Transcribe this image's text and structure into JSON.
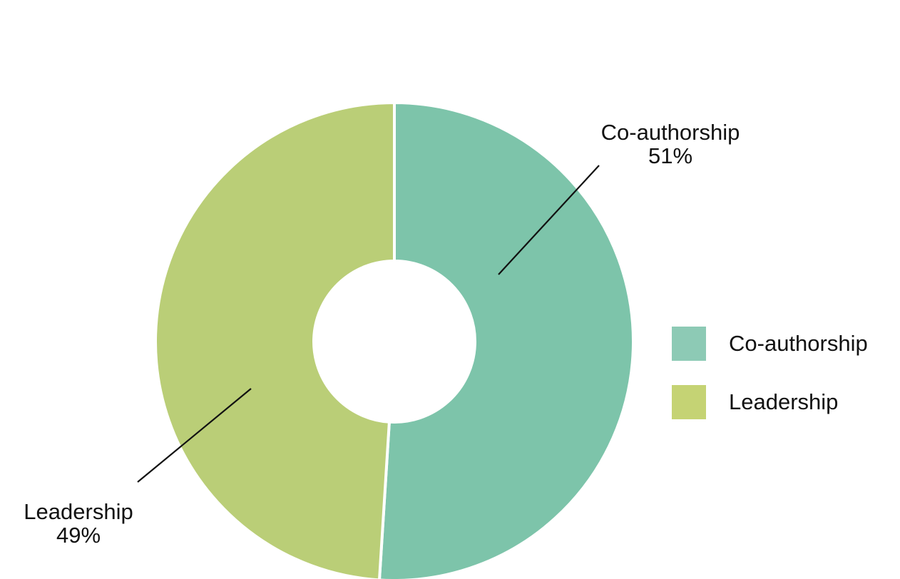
{
  "chart_data": {
    "type": "pie",
    "donut": true,
    "title": "",
    "slices": [
      {
        "name": "Co-authorship",
        "value": 51,
        "label": "51%",
        "color": "#7dc4aa",
        "legend_color": "#8dcab5"
      },
      {
        "name": "Leadership",
        "value": 49,
        "label": "49%",
        "color": "#bace77",
        "legend_color": "#c5d374"
      }
    ],
    "legend": {
      "placement": "right",
      "items": [
        "Co-authorship",
        "Leadership"
      ]
    }
  }
}
